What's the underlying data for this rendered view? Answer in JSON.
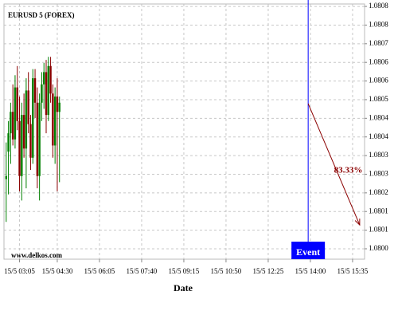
{
  "chart_data": {
    "type": "candlestick",
    "title": "EURUSD 5 (FOREX)",
    "watermark": "www.delkos.com",
    "x_label": "Date",
    "up_color": "#008000",
    "down_color": "#8b0000",
    "grid": true,
    "x": [
      155,
      160,
      165,
      170,
      175,
      180,
      185,
      190,
      195,
      200,
      205,
      210,
      215,
      220,
      225,
      230,
      235,
      240,
      245,
      250,
      255,
      260,
      265,
      270,
      275
    ],
    "open": [
      1.08025,
      1.08034,
      1.0804,
      1.08047,
      1.08038,
      1.08055,
      1.08044,
      1.08026,
      1.08046,
      1.08035,
      1.08054,
      1.08043,
      1.08032,
      1.08058,
      1.0805,
      1.08026,
      1.0805,
      1.08056,
      1.0806,
      1.08046,
      1.08062,
      1.08053,
      1.08036,
      1.08052,
      1.08047
    ],
    "high": [
      1.08037,
      1.08044,
      1.0805,
      1.08056,
      1.08059,
      1.08062,
      1.08052,
      1.0805,
      1.08053,
      1.08058,
      1.0806,
      1.08046,
      1.08061,
      1.08061,
      1.08055,
      1.08053,
      1.0806,
      1.08063,
      1.08064,
      1.08065,
      1.08065,
      1.08056,
      1.08055,
      1.08058,
      1.08052
    ],
    "low": [
      1.08011,
      1.0802,
      1.0803,
      1.08036,
      1.08035,
      1.08041,
      1.08021,
      1.08018,
      1.08032,
      1.08022,
      1.0804,
      1.08028,
      1.0803,
      1.08045,
      1.08022,
      1.08018,
      1.08044,
      1.08048,
      1.0804,
      1.08044,
      1.0805,
      1.08032,
      1.0803,
      1.08021,
      1.08024
    ],
    "close": [
      1.08026,
      1.0804,
      1.08047,
      1.08038,
      1.08055,
      1.08044,
      1.08026,
      1.08046,
      1.08035,
      1.08054,
      1.08043,
      1.08032,
      1.08058,
      1.0805,
      1.08026,
      1.0805,
      1.08056,
      1.0806,
      1.08046,
      1.08062,
      1.08053,
      1.08036,
      1.08052,
      1.08047,
      1.0805
    ],
    "xlim": [
      150,
      962
    ],
    "xticks": [
      {
        "value": 185,
        "label": "15/5 03:05"
      },
      {
        "value": 270,
        "label": "15/5 04:30"
      },
      {
        "value": 365,
        "label": "15/5 06:05"
      },
      {
        "value": 460,
        "label": "15/5 07:40"
      },
      {
        "value": 555,
        "label": "15/5 09:15"
      },
      {
        "value": 650,
        "label": "15/5 10:50"
      },
      {
        "value": 745,
        "label": "15/5 12:25"
      },
      {
        "value": 840,
        "label": "15/5 14:00"
      },
      {
        "value": 935,
        "label": "15/5 15:35"
      }
    ],
    "ylim": [
      1.079988,
      1.080823
    ],
    "yticks": [
      {
        "value": 1.080815,
        "label": "1.0808"
      },
      {
        "value": 1.080754,
        "label": "1.0808"
      },
      {
        "value": 1.080693,
        "label": "1.0807"
      },
      {
        "value": 1.080632,
        "label": "1.0806"
      },
      {
        "value": 1.080571,
        "label": "1.0806"
      },
      {
        "value": 1.08051,
        "label": "1.0805"
      },
      {
        "value": 1.080449,
        "label": "1.0804"
      },
      {
        "value": 1.080388,
        "label": "1.0804"
      },
      {
        "value": 1.080327,
        "label": "1.0803"
      },
      {
        "value": 1.080266,
        "label": "1.0803"
      },
      {
        "value": 1.080205,
        "label": "1.0802"
      },
      {
        "value": 1.080144,
        "label": "1.0801"
      },
      {
        "value": 1.080083,
        "label": "1.0801"
      },
      {
        "value": 1.080022,
        "label": "1.0800"
      }
    ],
    "event": {
      "label": "Event",
      "x": 835,
      "color": "#0000ff"
    },
    "annotation": {
      "text": "83.33%",
      "color": "#8b0000",
      "x1": 835,
      "y1": 1.080497,
      "x2": 951,
      "y2": 1.0801
    }
  }
}
